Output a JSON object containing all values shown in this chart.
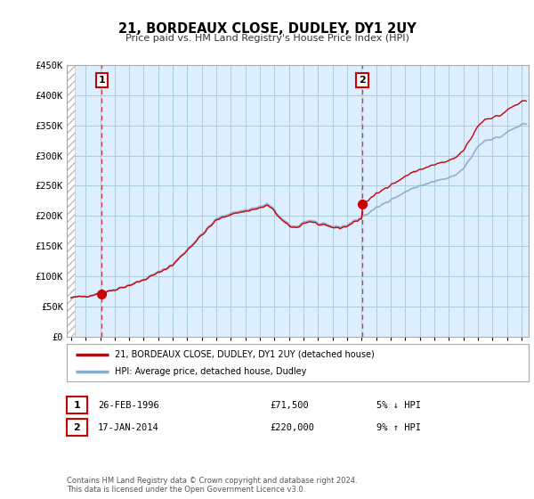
{
  "title": "21, BORDEAUX CLOSE, DUDLEY, DY1 2UY",
  "subtitle": "Price paid vs. HM Land Registry's House Price Index (HPI)",
  "ylim": [
    0,
    450000
  ],
  "yticks": [
    0,
    50000,
    100000,
    150000,
    200000,
    250000,
    300000,
    350000,
    400000,
    450000
  ],
  "ytick_labels": [
    "£0",
    "£50K",
    "£100K",
    "£150K",
    "£200K",
    "£250K",
    "£300K",
    "£350K",
    "£400K",
    "£450K"
  ],
  "sale1_date": 1996.12,
  "sale1_price": 71500,
  "sale2_date": 2014.05,
  "sale2_price": 220000,
  "legend_entry1": "21, BORDEAUX CLOSE, DUDLEY, DY1 2UY (detached house)",
  "legend_entry2": "HPI: Average price, detached house, Dudley",
  "table_row1_date": "26-FEB-1996",
  "table_row1_price": "£71,500",
  "table_row1_hpi": "5% ↓ HPI",
  "table_row2_date": "17-JAN-2014",
  "table_row2_price": "£220,000",
  "table_row2_hpi": "9% ↑ HPI",
  "footnote": "Contains HM Land Registry data © Crown copyright and database right 2024.\nThis data is licensed under the Open Government Licence v3.0.",
  "line_color_property": "#cc0000",
  "line_color_hpi": "#88aacc",
  "vline_color": "#cc3333",
  "background_color": "#ffffff",
  "plot_bg_color": "#ddeeff",
  "grid_color": "#aaccdd"
}
